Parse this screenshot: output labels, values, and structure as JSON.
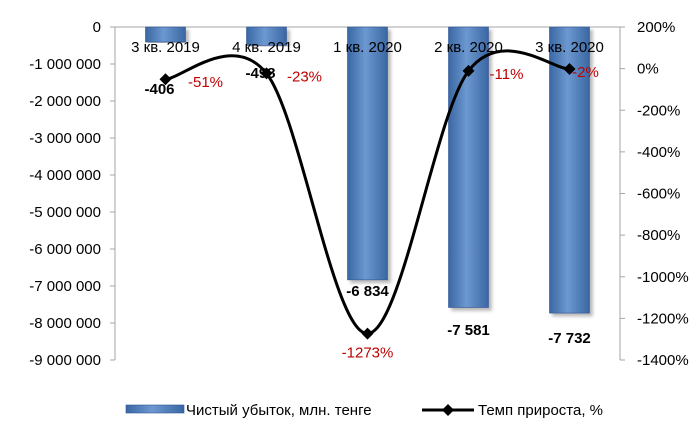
{
  "chart_data": {
    "type": "bar",
    "title": "",
    "categories": [
      "3 кв. 2019",
      "4 кв. 2019",
      "1 кв. 2020",
      "2 кв. 2020",
      "3 кв. 2020"
    ],
    "series": [
      {
        "name": "Чистый убыток, млн. тенге",
        "type": "bar",
        "axis": "left",
        "values": [
          -406000,
          -498000,
          -6834000,
          -7581000,
          -7732000
        ],
        "labels": [
          "-406",
          "-498",
          "-6 834",
          "-7 581",
          "-7 732"
        ],
        "color": "#4f81bd"
      },
      {
        "name": "Темп прироста, %",
        "type": "line",
        "axis": "right",
        "values": [
          -51,
          -23,
          -1273,
          -11,
          -2
        ],
        "labels": [
          "-51%",
          "-23%",
          "-1273%",
          "-11%",
          "-2%"
        ],
        "color": "#000000",
        "label_color": "#c00000"
      }
    ],
    "y_left": {
      "min": -9000000,
      "max": 0,
      "ticks": [
        0,
        -1000000,
        -2000000,
        -3000000,
        -4000000,
        -5000000,
        -6000000,
        -7000000,
        -8000000,
        -9000000
      ],
      "tick_labels": [
        "0",
        "-1 000 000",
        "-2 000 000",
        "-3 000 000",
        "-4 000 000",
        "-5 000 000",
        "-6 000 000",
        "-7 000 000",
        "-8 000 000",
        "-9 000 000"
      ]
    },
    "y_right": {
      "min": -1400,
      "max": 200,
      "ticks": [
        200,
        0,
        -200,
        -400,
        -600,
        -800,
        -1000,
        -1200,
        -1400
      ],
      "tick_labels": [
        "200%",
        "0%",
        "-200%",
        "-400%",
        "-600%",
        "-800%",
        "-1000%",
        "-1200%",
        "-1400%"
      ]
    },
    "grid": false,
    "legend_position": "bottom"
  }
}
